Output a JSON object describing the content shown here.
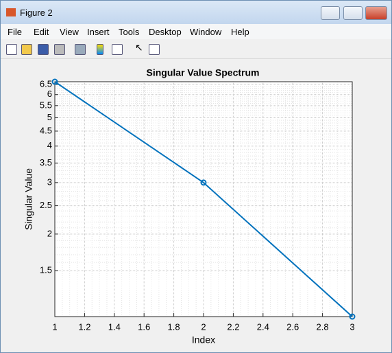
{
  "window": {
    "title": "Figure 2"
  },
  "menu": [
    "File",
    "Edit",
    "View",
    "Insert",
    "Tools",
    "Desktop",
    "Window",
    "Help"
  ],
  "chart_data": {
    "type": "line",
    "title": "Singular Value Spectrum",
    "x_label": "Index",
    "y_label": "Singular Value",
    "x": [
      1,
      2,
      3
    ],
    "series": [
      {
        "color": "#0072bd",
        "marker": "o",
        "values": [
          6.64,
          3,
          1.044
        ]
      }
    ],
    "xlim": [
      1,
      3
    ],
    "xticks": [
      1,
      1.2,
      1.4,
      1.6,
      1.8,
      2,
      2.2,
      2.4,
      2.6,
      2.8,
      3
    ],
    "ylim": [
      1.044,
      6.64
    ],
    "yticks": [
      1.5,
      2,
      2.5,
      3,
      3.5,
      4,
      4.5,
      5,
      5.5,
      6,
      6.5
    ],
    "y_scale": "log",
    "grid": true,
    "minor_grid": true
  }
}
